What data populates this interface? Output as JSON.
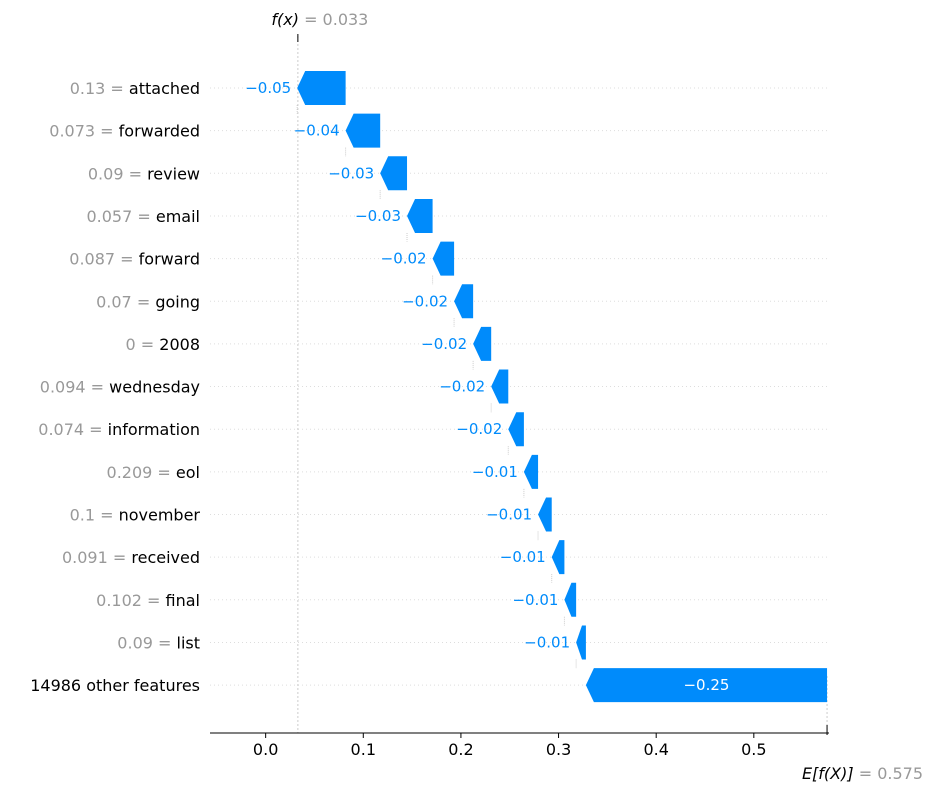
{
  "chart_data": {
    "type": "waterfall",
    "fx_label": "f(x)",
    "fx_value": "= 0.033",
    "efx_label": "E[f(X)]",
    "efx_value": "= 0.575",
    "base_value": 0.575,
    "final_value": 0.033,
    "xlim": [
      -0.057,
      0.577
    ],
    "x_ticks": [
      0.0,
      0.1,
      0.2,
      0.3,
      0.4,
      0.5
    ],
    "x_tick_labels": [
      "0.0",
      "0.1",
      "0.2",
      "0.3",
      "0.4",
      "0.5"
    ],
    "grid": "horizontal dotted",
    "colors": {
      "negative": "#008bfb",
      "feature_value": "#999999",
      "feature_name": "#000000"
    },
    "features": [
      {
        "value": "0.13",
        "name": "attached",
        "contribution": -0.0496,
        "label": "−0.05"
      },
      {
        "value": "0.073",
        "name": "forwarded",
        "contribution": -0.0354,
        "label": "−0.04"
      },
      {
        "value": "0.09",
        "name": "review",
        "contribution": -0.0275,
        "label": "−0.03"
      },
      {
        "value": "0.057",
        "name": "email",
        "contribution": -0.0262,
        "label": "−0.03"
      },
      {
        "value": "0.087",
        "name": "forward",
        "contribution": -0.022,
        "label": "−0.02"
      },
      {
        "value": "0.07",
        "name": "going",
        "contribution": -0.0195,
        "label": "−0.02"
      },
      {
        "value": "0",
        "name": "2008",
        "contribution": -0.0185,
        "label": "−0.02"
      },
      {
        "value": "0.094",
        "name": "wednesday",
        "contribution": -0.0175,
        "label": "−0.02"
      },
      {
        "value": "0.074",
        "name": "information",
        "contribution": -0.016,
        "label": "−0.02"
      },
      {
        "value": "0.209",
        "name": "eol",
        "contribution": -0.0145,
        "label": "−0.01"
      },
      {
        "value": "0.1",
        "name": "november",
        "contribution": -0.014,
        "label": "−0.01"
      },
      {
        "value": "0.091",
        "name": "received",
        "contribution": -0.013,
        "label": "−0.01"
      },
      {
        "value": "0.102",
        "name": "final",
        "contribution": -0.012,
        "label": "−0.01"
      },
      {
        "value": "0.09",
        "name": "list",
        "contribution": -0.01,
        "label": "−0.01"
      },
      {
        "value": "",
        "name": "14986 other features",
        "contribution": -0.247,
        "label": "−0.25"
      }
    ]
  }
}
